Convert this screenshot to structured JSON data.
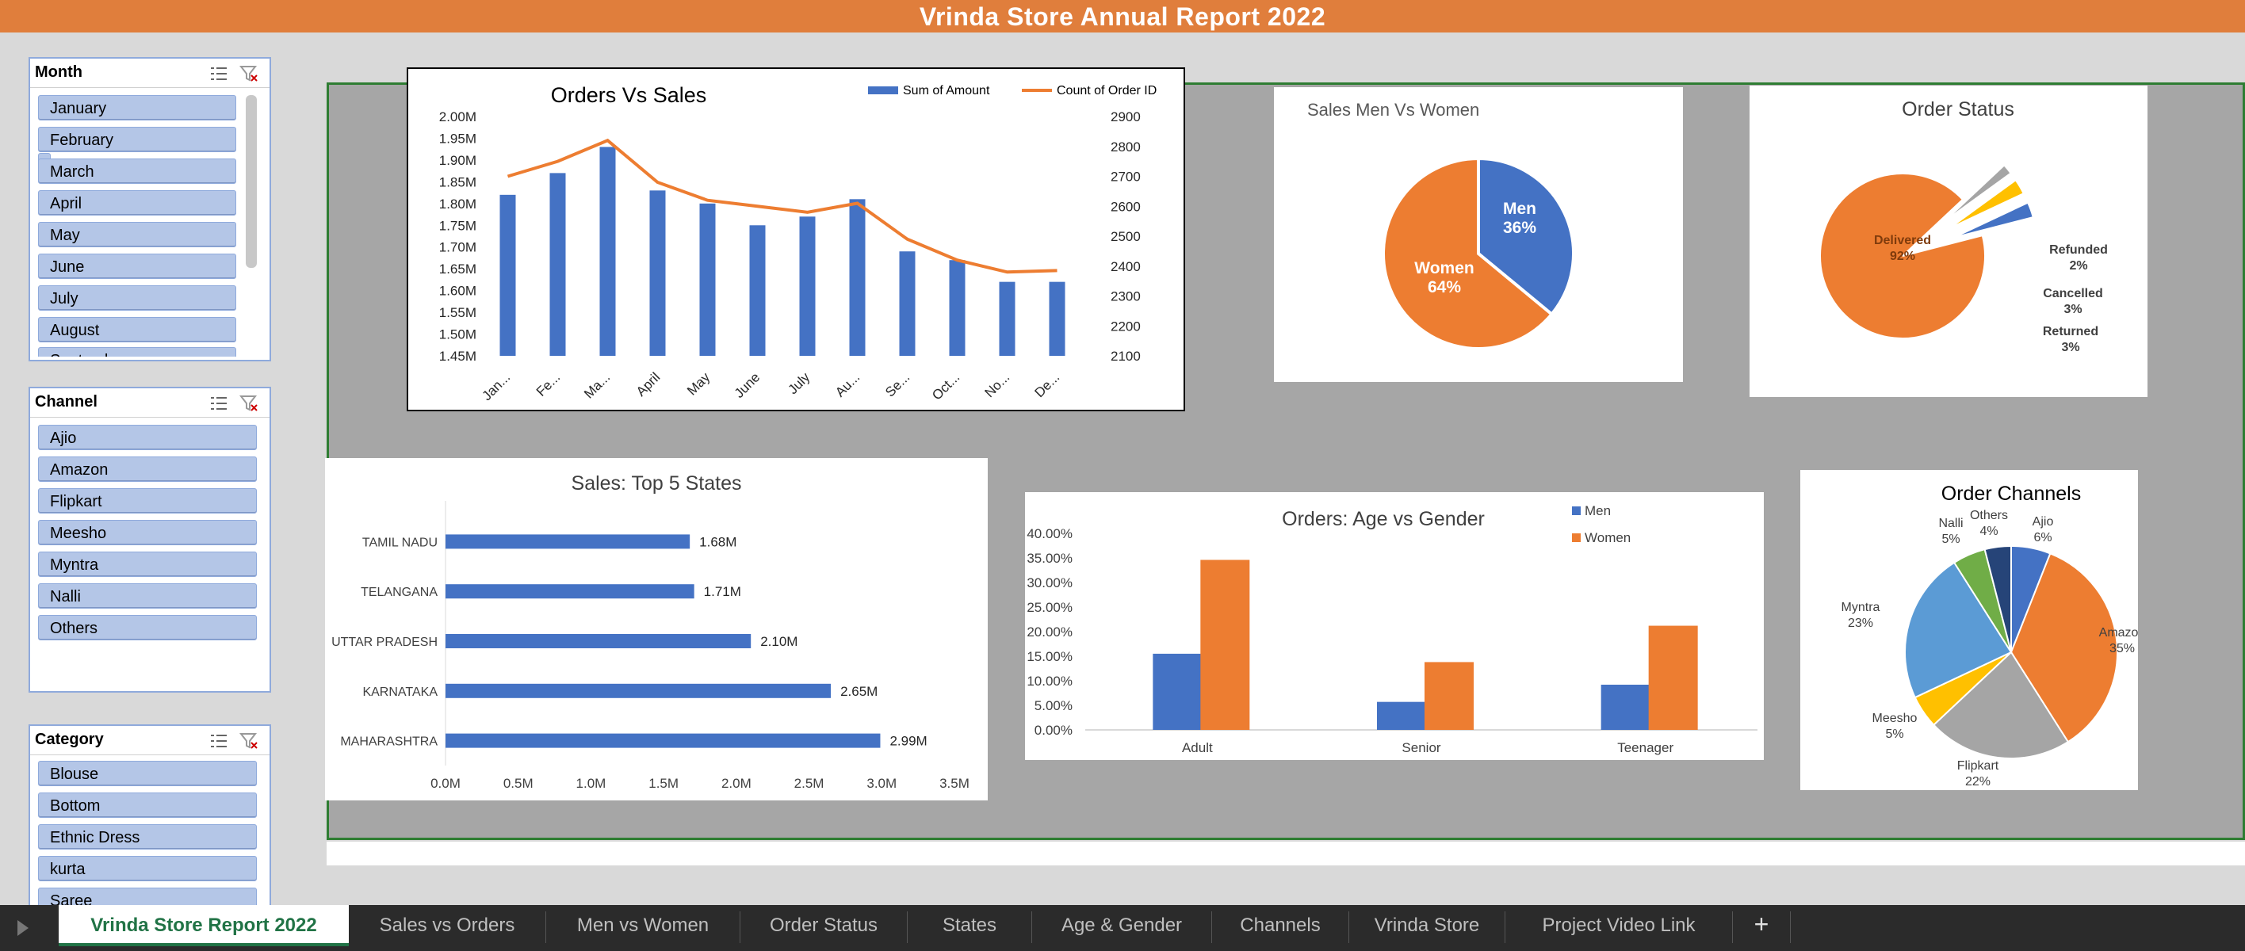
{
  "report": {
    "title": "Vrinda Store Annual Report 2022"
  },
  "slicers": {
    "month": {
      "title": "Month",
      "items": [
        "January",
        "February",
        "March",
        "April",
        "May",
        "June",
        "July",
        "August",
        "September"
      ]
    },
    "channel": {
      "title": "Channel",
      "items": [
        "Ajio",
        "Amazon",
        "Flipkart",
        "Meesho",
        "Myntra",
        "Nalli",
        "Others"
      ]
    },
    "category": {
      "title": "Category",
      "items": [
        "Blouse",
        "Bottom",
        "Ethnic Dress",
        "kurta",
        "Saree"
      ]
    }
  },
  "chart_data": [
    {
      "id": "orders_vs_sales",
      "type": "bar",
      "title": "Orders Vs Sales",
      "categories": [
        "Jan...",
        "Fe...",
        "Ma...",
        "April",
        "May",
        "June",
        "July",
        "Au...",
        "Se...",
        "Oct...",
        "No...",
        "De..."
      ],
      "series": [
        {
          "name": "Sum of Amount",
          "type": "bar",
          "axis": "left",
          "color": "#4472c4",
          "values": [
            1.82,
            1.87,
            1.93,
            1.83,
            1.8,
            1.75,
            1.77,
            1.81,
            1.69,
            1.67,
            1.62,
            1.62
          ]
        },
        {
          "name": "Count of Order ID",
          "type": "line",
          "axis": "right",
          "color": "#ed7d31",
          "values": [
            2700,
            2750,
            2820,
            2680,
            2620,
            2600,
            2580,
            2610,
            2490,
            2420,
            2380,
            2385
          ]
        }
      ],
      "ylim_left": [
        1.45,
        2.0
      ],
      "yticks_left": [
        "2.00M",
        "1.95M",
        "1.90M",
        "1.85M",
        "1.80M",
        "1.75M",
        "1.70M",
        "1.65M",
        "1.60M",
        "1.55M",
        "1.50M",
        "1.45M"
      ],
      "ylim_right": [
        2100,
        2900
      ],
      "yticks_right": [
        "2900",
        "2800",
        "2700",
        "2600",
        "2500",
        "2400",
        "2300",
        "2200",
        "2100"
      ],
      "legend": "top-right"
    },
    {
      "id": "sales_men_women",
      "type": "pie",
      "title": "Sales Men Vs Women",
      "slices": [
        {
          "label": "Men",
          "pct": "36%",
          "value": 36,
          "color": "#4472c4"
        },
        {
          "label": "Women",
          "pct": "64%",
          "value": 64,
          "color": "#ed7d31"
        }
      ]
    },
    {
      "id": "order_status",
      "type": "pie",
      "title": "Order Status",
      "slices": [
        {
          "label": "Delivered",
          "pct": "92%",
          "value": 92,
          "color": "#ed7d31"
        },
        {
          "label": "Refunded",
          "pct": "2%",
          "value": 2,
          "color": "#a5a5a5"
        },
        {
          "label": "Cancelled",
          "pct": "3%",
          "value": 3,
          "color": "#ffc000"
        },
        {
          "label": "Returned",
          "pct": "3%",
          "value": 3,
          "color": "#4472c4"
        }
      ]
    },
    {
      "id": "top_states",
      "type": "bar",
      "orientation": "horizontal",
      "title": "Sales: Top 5 States",
      "categories": [
        "TAMIL NADU",
        "TELANGANA",
        "UTTAR PRADESH",
        "KARNATAKA",
        "MAHARASHTRA"
      ],
      "values": [
        1.68,
        1.71,
        2.1,
        2.65,
        2.99
      ],
      "data_labels": [
        "1.68M",
        "1.71M",
        "2.10M",
        "2.65M",
        "2.99M"
      ],
      "xlim": [
        0,
        3.5
      ],
      "xticks": [
        "0.0M",
        "0.5M",
        "1.0M",
        "1.5M",
        "2.0M",
        "2.5M",
        "3.0M",
        "3.5M"
      ],
      "color": "#4472c4"
    },
    {
      "id": "age_gender",
      "type": "bar",
      "title": "Orders:  Age vs Gender",
      "categories": [
        "Adult",
        "Senior",
        "Teenager"
      ],
      "series": [
        {
          "name": "Men",
          "color": "#4472c4",
          "values": [
            15.5,
            5.7,
            9.2
          ]
        },
        {
          "name": "Women",
          "color": "#ed7d31",
          "values": [
            34.6,
            13.8,
            21.2
          ]
        }
      ],
      "ylim": [
        0,
        40
      ],
      "yticks": [
        "0.00%",
        "5.00%",
        "10.00%",
        "15.00%",
        "20.00%",
        "25.00%",
        "30.00%",
        "35.00%",
        "40.00%"
      ],
      "legend": "top-right"
    },
    {
      "id": "order_channels",
      "type": "pie",
      "title": "Order Channels",
      "slices": [
        {
          "label": "Ajio",
          "pct": "6%",
          "value": 6,
          "color": "#4472c4"
        },
        {
          "label": "Amazon",
          "pct": "35%",
          "value": 35,
          "color": "#ed7d31"
        },
        {
          "label": "Flipkart",
          "pct": "22%",
          "value": 22,
          "color": "#a5a5a5"
        },
        {
          "label": "Meesho",
          "pct": "5%",
          "value": 5,
          "color": "#ffc000"
        },
        {
          "label": "Myntra",
          "pct": "23%",
          "value": 23,
          "color": "#5b9bd5"
        },
        {
          "label": "Nalli",
          "pct": "5%",
          "value": 5,
          "color": "#70ad47"
        },
        {
          "label": "Others",
          "pct": "4%",
          "value": 4,
          "color": "#264478"
        }
      ]
    }
  ],
  "sheet_tabs": [
    "Vrinda Store Report 2022",
    "Sales vs Orders",
    "Men vs Women",
    "Order Status",
    "States",
    "Age & Gender",
    "Channels",
    "Vrinda Store",
    "Project Video Link"
  ],
  "add_sheet": "+",
  "colors": {
    "accent": "#e07e3c",
    "blue": "#4472c4",
    "orange": "#ed7d31",
    "excel_green": "#217346"
  }
}
